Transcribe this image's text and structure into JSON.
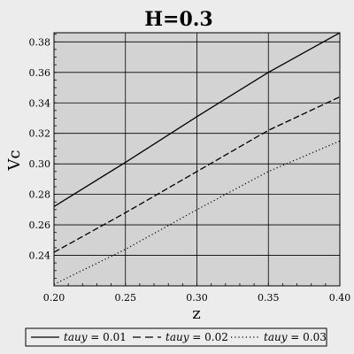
{
  "chart_data": {
    "type": "line",
    "title": "H=0.3",
    "xlabel": "z",
    "ylabel": "Vc",
    "xlim": [
      0.2,
      0.4
    ],
    "ylim": [
      0.22,
      0.386
    ],
    "x_ticks": [
      "0.20",
      "0.25",
      "0.30",
      "0.35",
      "0.40"
    ],
    "y_ticks": [
      "0.24",
      "0.26",
      "0.28",
      "0.30",
      "0.32",
      "0.34",
      "0.36",
      "0.38"
    ],
    "grid": true,
    "legend_position": "bottom",
    "x": [
      0.2,
      0.25,
      0.3,
      0.35,
      0.4
    ],
    "series": [
      {
        "name": "tauy = 0.01",
        "legend_var": "tauy",
        "legend_value": " = 0.01",
        "style": "solid",
        "values": [
          0.272,
          0.301,
          0.331,
          0.36,
          0.386
        ]
      },
      {
        "name": "tauy = 0.02",
        "legend_var": "tauy",
        "legend_value": " = 0.02",
        "style": "dashed",
        "values": [
          0.242,
          0.268,
          0.295,
          0.322,
          0.344
        ]
      },
      {
        "name": "tauy = 0.03",
        "legend_var": "tauy",
        "legend_value": " = 0.03",
        "style": "dotted",
        "values": [
          0.221,
          0.244,
          0.27,
          0.295,
          0.315
        ]
      }
    ],
    "colors": {
      "plot_background": "#d3d3d3",
      "page_background": "#ececec",
      "grid": "#000000",
      "series": "#000000"
    }
  }
}
